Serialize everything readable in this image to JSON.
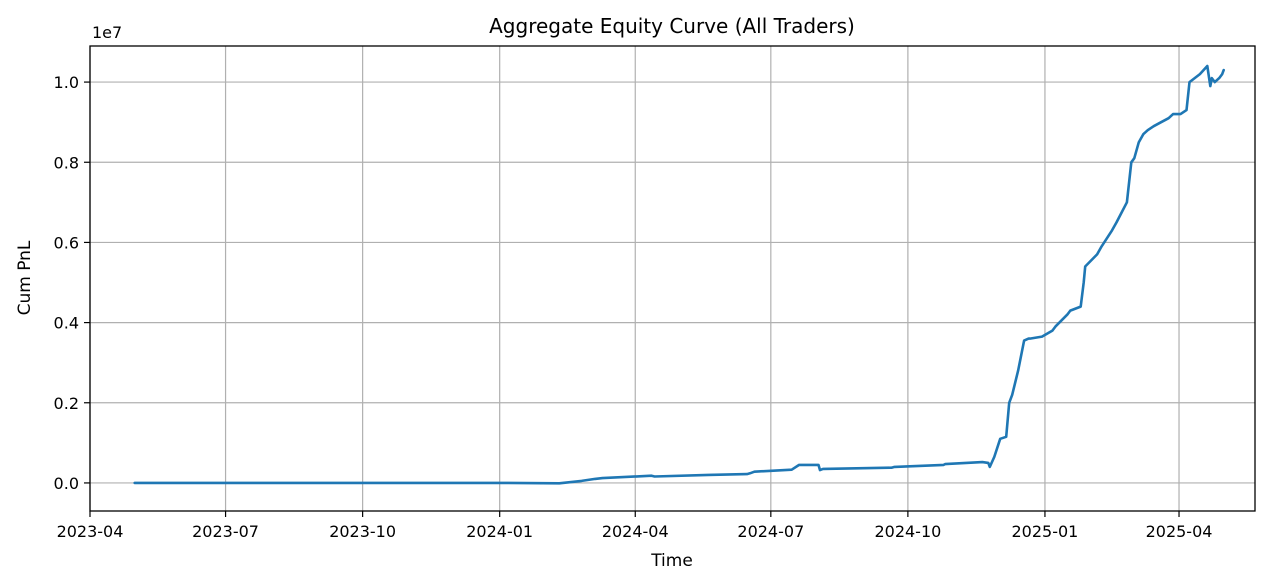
{
  "chart_data": {
    "type": "line",
    "title": "Aggregate Equity Curve (All Traders)",
    "xlabel": "Time",
    "ylabel": "Cum PnL",
    "y_multiplier_label": "1e7",
    "y_multiplier": 10000000,
    "grid": true,
    "line_color": "#1f77b4",
    "xlim": [
      "2023-04-01",
      "2025-05-22"
    ],
    "ylim": [
      -0.07,
      1.09
    ],
    "x_ticks": [
      {
        "value": "2023-04-01",
        "label": "2023-04"
      },
      {
        "value": "2023-07-01",
        "label": "2023-07"
      },
      {
        "value": "2023-10-01",
        "label": "2023-10"
      },
      {
        "value": "2024-01-01",
        "label": "2024-01"
      },
      {
        "value": "2024-04-01",
        "label": "2024-04"
      },
      {
        "value": "2024-07-01",
        "label": "2024-07"
      },
      {
        "value": "2024-10-01",
        "label": "2024-10"
      },
      {
        "value": "2025-01-01",
        "label": "2025-01"
      },
      {
        "value": "2025-04-01",
        "label": "2025-04"
      }
    ],
    "y_ticks": [
      {
        "value": 0.0,
        "label": "0.0"
      },
      {
        "value": 0.2,
        "label": "0.2"
      },
      {
        "value": 0.4,
        "label": "0.4"
      },
      {
        "value": 0.6,
        "label": "0.6"
      },
      {
        "value": 0.8,
        "label": "0.8"
      },
      {
        "value": 1.0,
        "label": "1.0"
      }
    ],
    "series": [
      {
        "x": [
          "2023-05-01",
          "2023-08-01",
          "2023-11-01",
          "2024-01-01",
          "2024-02-10",
          "2024-02-25",
          "2024-03-05",
          "2024-03-10",
          "2024-04-12",
          "2024-04-14",
          "2024-05-20",
          "2024-06-15",
          "2024-06-17",
          "2024-06-20",
          "2024-07-15",
          "2024-07-20",
          "2024-07-22",
          "2024-08-02",
          "2024-08-03",
          "2024-08-05",
          "2024-09-20",
          "2024-09-22",
          "2024-10-25",
          "2024-10-26",
          "2024-11-20",
          "2024-11-24",
          "2024-11-25",
          "2024-11-28",
          "2024-12-02",
          "2024-12-06",
          "2024-12-08",
          "2024-12-10",
          "2024-12-14",
          "2024-12-18",
          "2024-12-21",
          "2024-12-22",
          "2024-12-30",
          "2025-01-06",
          "2025-01-08",
          "2025-01-16",
          "2025-01-18",
          "2025-01-25",
          "2025-01-27",
          "2025-01-28",
          "2025-02-05",
          "2025-02-08",
          "2025-02-15",
          "2025-02-18",
          "2025-02-25",
          "2025-02-28",
          "2025-03-02",
          "2025-03-05",
          "2025-03-08",
          "2025-03-11",
          "2025-03-15",
          "2025-03-20",
          "2025-03-25",
          "2025-03-28",
          "2025-04-02",
          "2025-04-06",
          "2025-04-08",
          "2025-04-15",
          "2025-04-20",
          "2025-04-22",
          "2025-04-23",
          "2025-04-25",
          "2025-04-28",
          "2025-04-30",
          "2025-05-01"
        ],
        "values": [
          0.0,
          0.0,
          0.0,
          0.0,
          -0.001,
          0.005,
          0.01,
          0.012,
          0.018,
          0.016,
          0.02,
          0.022,
          0.024,
          0.028,
          0.033,
          0.045,
          0.045,
          0.045,
          0.032,
          0.035,
          0.038,
          0.04,
          0.045,
          0.047,
          0.052,
          0.05,
          0.04,
          0.065,
          0.11,
          0.115,
          0.2,
          0.22,
          0.28,
          0.355,
          0.36,
          0.36,
          0.365,
          0.38,
          0.39,
          0.42,
          0.43,
          0.44,
          0.5,
          0.54,
          0.57,
          0.59,
          0.63,
          0.65,
          0.7,
          0.8,
          0.81,
          0.85,
          0.87,
          0.88,
          0.89,
          0.9,
          0.91,
          0.92,
          0.92,
          0.93,
          1.0,
          1.02,
          1.04,
          0.99,
          1.01,
          1.0,
          1.01,
          1.02,
          1.03
        ]
      }
    ]
  }
}
